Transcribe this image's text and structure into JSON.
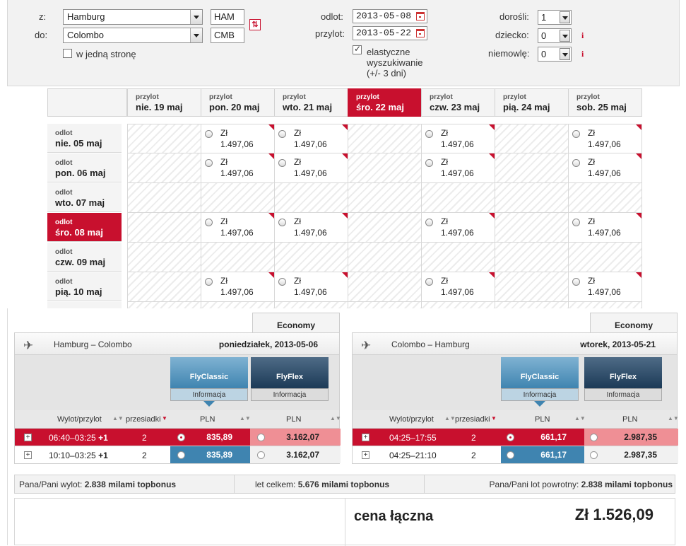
{
  "search": {
    "from_label": "z:",
    "to_label": "do:",
    "from_city": "Hamburg",
    "to_city": "Colombo",
    "from_code": "HAM",
    "to_code": "CMB",
    "one_way_label": "w jedną stronę",
    "depart_label": "odlot:",
    "return_label": "przylot:",
    "depart_date": "2013-05-08",
    "return_date": "2013-05-22",
    "flexible_label_1": "elastyczne",
    "flexible_label_2": "wyszukiwanie",
    "flexible_label_3": "(+/- 3 dni)",
    "adults_label": "dorośli:",
    "child_label": "dziecko:",
    "infant_label": "niemowlę:",
    "adults": "1",
    "child": "0",
    "infant": "0",
    "info_mark": "i"
  },
  "calendar": {
    "return_prefix": "przylot",
    "depart_prefix": "odlot",
    "columns": [
      "nie. 19 maj",
      "pon. 20 maj",
      "wto. 21 maj",
      "śro. 22 maj",
      "czw. 23 maj",
      "pią. 24 maj",
      "sob. 25 maj"
    ],
    "active_column": 3,
    "rows": [
      "nie. 05 maj",
      "pon. 06 maj",
      "wto. 07 maj",
      "śro. 08 maj",
      "czw. 09 maj",
      "pią. 10 maj"
    ],
    "active_row": 3,
    "currency": "Zł",
    "price": "1.497,06",
    "availability": [
      [
        0,
        1,
        1,
        0,
        1,
        0,
        1
      ],
      [
        0,
        1,
        1,
        0,
        1,
        0,
        1
      ],
      [
        0,
        0,
        0,
        0,
        0,
        0,
        0
      ],
      [
        0,
        1,
        1,
        0,
        1,
        0,
        1
      ],
      [
        0,
        0,
        0,
        0,
        0,
        0,
        0
      ],
      [
        0,
        1,
        1,
        0,
        1,
        0,
        1
      ]
    ]
  },
  "outbound": {
    "cabin": "Economy",
    "route": "Hamburg – Colombo",
    "date": "poniedziałek, 2013-05-06",
    "fare1": "FlyClassic",
    "fare2": "FlyFlex",
    "info": "Informacja",
    "col_times": "Wylot/przylot",
    "col_stops": "przesiadki",
    "col_pln": "PLN",
    "rows": [
      {
        "time": "06:40–03:25",
        "plus": "+1",
        "stops": "2",
        "p1": "835,89",
        "p2": "3.162,07"
      },
      {
        "time": "10:10–03:25",
        "plus": "+1",
        "stops": "2",
        "p1": "835,89",
        "p2": "3.162,07"
      }
    ]
  },
  "inbound": {
    "cabin": "Economy",
    "route": "Colombo – Hamburg",
    "date": "wtorek, 2013-05-21",
    "fare1": "FlyClassic",
    "fare2": "FlyFlex",
    "info": "Informacja",
    "col_times": "Wylot/przylot",
    "col_stops": "przesiadki",
    "col_pln": "PLN",
    "rows": [
      {
        "time": "04:25–17:55",
        "stops": "2",
        "p1": "661,17",
        "p2": "2.987,35"
      },
      {
        "time": "04:25–21:10",
        "stops": "2",
        "p1": "661,17",
        "p2": "2.987,35"
      }
    ]
  },
  "bonus": {
    "out_prefix": "Pana/Pani wylot:",
    "out_value": "2.838 milami topbonus",
    "total_prefix": "let celkem:",
    "total_value": "5.676 milami topbonus",
    "ret_prefix": "Pana/Pani lot powrotny:",
    "ret_value": "2.838 milami topbonus"
  },
  "total": {
    "label": "cena łączna",
    "value": "Zł 1.526,09"
  },
  "colors": {
    "accent_red": "#c8102e",
    "classic_blue": "#3f84b0",
    "flex_navy": "#1c3a57"
  }
}
